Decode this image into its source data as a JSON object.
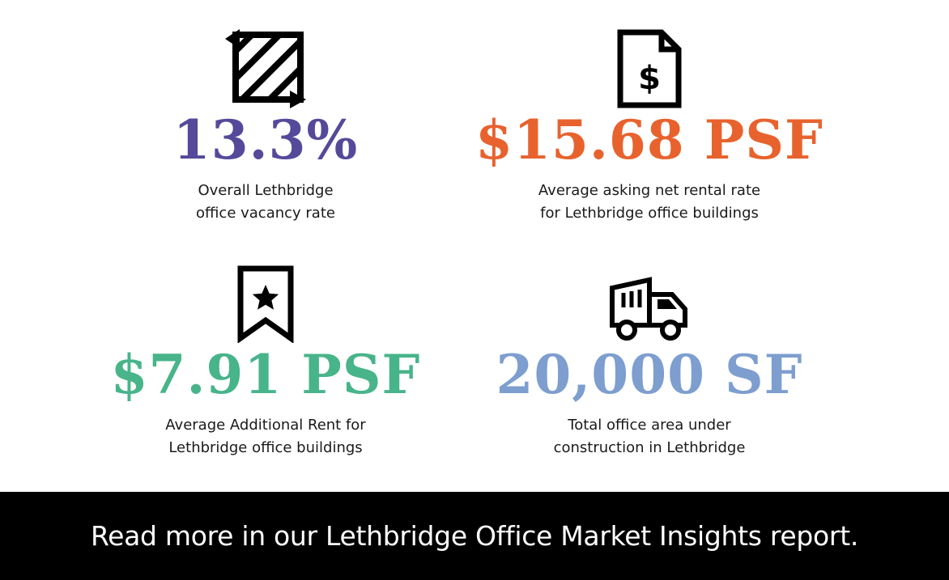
{
  "stats": [
    {
      "icon": "vacancy-area-icon",
      "value": "13.3%",
      "color": "#55499a",
      "desc_lines": [
        "Overall Lethbridge",
        "office vacancy rate"
      ]
    },
    {
      "icon": "dollar-document-icon",
      "value": "$15.68 PSF",
      "color": "#e8622e",
      "desc_lines": [
        "Average asking net rental rate",
        "for Lethbridge office buildings"
      ]
    },
    {
      "icon": "star-bookmark-icon",
      "value": "$7.91 PSF",
      "color": "#48b48a",
      "desc_lines": [
        "Average Additional Rent for",
        "Lethbridge office buildings"
      ]
    },
    {
      "icon": "dump-truck-icon",
      "value": "20,000 SF",
      "color": "#7d9ecf",
      "desc_lines": [
        "Total office area under",
        "construction in Lethbridge"
      ]
    }
  ],
  "footer": {
    "text": "Read more in our Lethbridge Office Market Insights report."
  }
}
